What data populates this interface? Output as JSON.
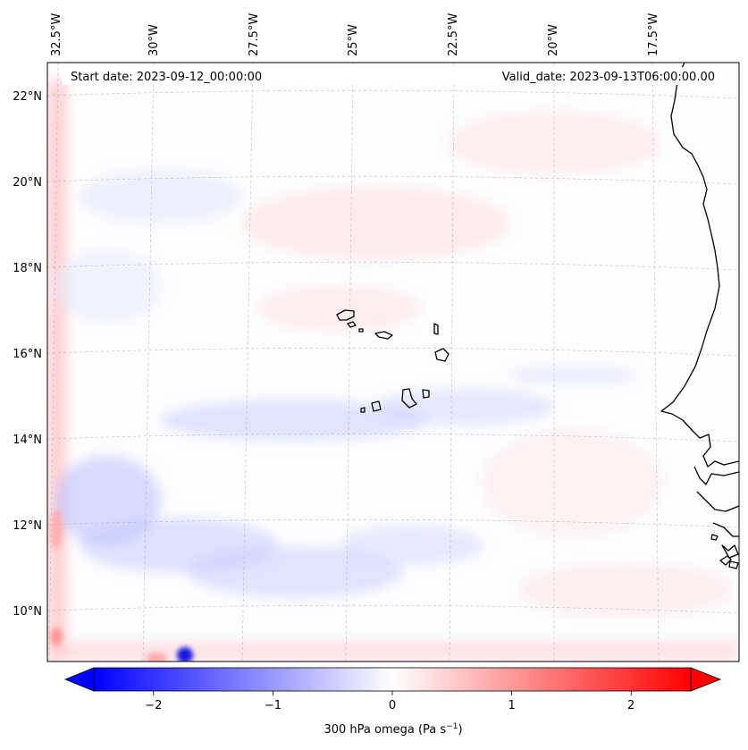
{
  "header": {
    "start_date": "Start date: 2023-09-12_00:00:00",
    "valid_date": "Valid_date: 2023-09-13T06:00:00.00"
  },
  "map": {
    "field": "300 hPa omega",
    "longitude_labels": [
      "32.5°W",
      "30°W",
      "27.5°W",
      "25°W",
      "22.5°W",
      "20°W",
      "17.5°W"
    ],
    "latitude_labels": [
      "22°N",
      "20°N",
      "18°N",
      "16°N",
      "14°N",
      "12°N",
      "10°N"
    ],
    "gridlines": true,
    "colormap": "bwr"
  },
  "colorbar": {
    "ticks": [
      "−2",
      "−1",
      "0",
      "1",
      "2"
    ],
    "tick_values": [
      -2,
      -1,
      0,
      1,
      2
    ],
    "range": [
      -2.5,
      2.5
    ],
    "extend": "both",
    "label_prefix": "300 hPa omega (Pa s",
    "label_exp": "−1",
    "label_suffix": ")",
    "colors": {
      "min": "#0000ff",
      "mid": "#ffffff",
      "max": "#ff0000"
    }
  }
}
